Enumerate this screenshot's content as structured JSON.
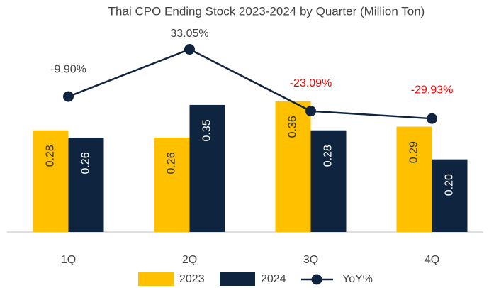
{
  "chart_data": {
    "type": "bar",
    "title": "Thai CPO Ending Stock 2023-2024 by Quarter (Million Ton)",
    "categories": [
      "1Q",
      "2Q",
      "3Q",
      "4Q"
    ],
    "ylim": [
      0,
      0.6
    ],
    "y2lim": [
      -133,
      65
    ],
    "series": [
      {
        "name": "2023",
        "type": "bar",
        "color": "#FFC000",
        "label_color": "#333333",
        "values": [
          0.28,
          0.26,
          0.36,
          0.29
        ],
        "value_labels": [
          "0.28",
          "0.26",
          "0.36",
          "0.29"
        ]
      },
      {
        "name": "2024",
        "type": "bar",
        "color": "#0F243E",
        "label_color": "#FFFFFF",
        "values": [
          0.26,
          0.35,
          0.28,
          0.2
        ],
        "value_labels": [
          "0.26",
          "0.35",
          "0.28",
          "0.20"
        ]
      },
      {
        "name": "YoY%",
        "type": "line",
        "axis": "y2",
        "color": "#0F243E",
        "values": [
          -9.9,
          33.05,
          -23.09,
          -29.93
        ],
        "value_labels": [
          "-9.90%",
          "33.05%",
          "-23.09%",
          "-29.93%"
        ],
        "value_label_colors": [
          "#444444",
          "#444444",
          "#FF0000",
          "#FF0000"
        ]
      }
    ]
  }
}
